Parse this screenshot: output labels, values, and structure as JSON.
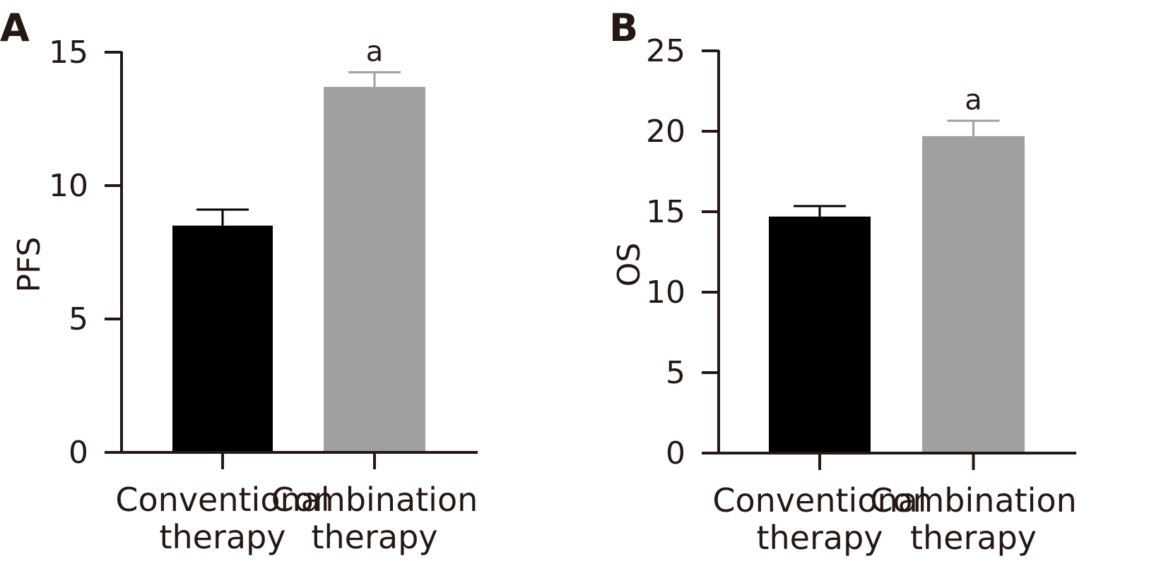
{
  "chart_data": [
    {
      "type": "bar",
      "panel": "A",
      "categories": [
        [
          "Conventional",
          "therapy"
        ],
        [
          "Combination",
          "therapy"
        ]
      ],
      "values": [
        8.5,
        13.7
      ],
      "errors": [
        0.6,
        0.55
      ],
      "bar_colors": [
        "#000000",
        "#a0a0a0"
      ],
      "significance": [
        "",
        "a"
      ],
      "ylabel": "PFS",
      "ylim": [
        0,
        15
      ],
      "yticks": [
        0,
        5,
        10,
        15
      ],
      "grid": false
    },
    {
      "type": "bar",
      "panel": "B",
      "categories": [
        [
          "Conventional",
          "therapy"
        ],
        [
          "Combination",
          "therapy"
        ]
      ],
      "values": [
        14.7,
        19.7
      ],
      "errors": [
        0.65,
        0.95
      ],
      "bar_colors": [
        "#000000",
        "#a0a0a0"
      ],
      "significance": [
        "",
        "a"
      ],
      "ylabel": "OS",
      "ylim": [
        0,
        25
      ],
      "yticks": [
        0,
        5,
        10,
        15,
        20,
        25
      ],
      "grid": false
    }
  ]
}
